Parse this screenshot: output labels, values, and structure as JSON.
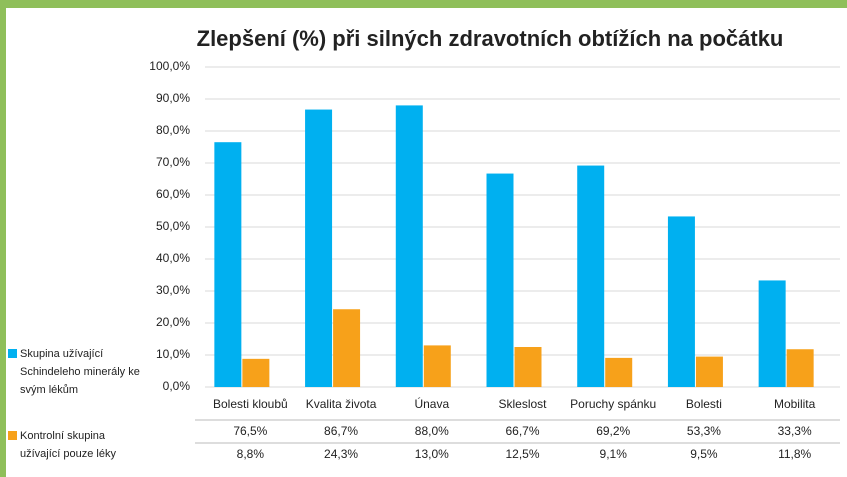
{
  "chart_data": {
    "type": "bar",
    "title": "Zlepšení (%) při silných zdravotních obtížích na počátku",
    "categories": [
      "Bolesti kloubů",
      "Kvalita života",
      "Únava",
      "Skleslost",
      "Poruchy spánku",
      "Bolesti",
      "Mobilita"
    ],
    "series": [
      {
        "name": "Skupina užívající Schindeleho minerály ke svým lékům",
        "color": "#00b0f0",
        "values": [
          76.5,
          86.7,
          88.0,
          66.7,
          69.2,
          53.3,
          33.3
        ],
        "value_labels": [
          "76,5%",
          "86,7%",
          "88,0%",
          "66,7%",
          "69,2%",
          "53,3%",
          "33,3%"
        ]
      },
      {
        "name": "Kontrolní skupina užívající pouze léky",
        "color": "#f7a11a",
        "values": [
          8.8,
          24.3,
          13.0,
          12.5,
          9.1,
          9.5,
          11.8
        ],
        "value_labels": [
          "8,8%",
          "24,3%",
          "13,0%",
          "12,5%",
          "9,1%",
          "9,5%",
          "11,8%"
        ]
      }
    ],
    "ylim": [
      0,
      100
    ],
    "yticks": [
      {
        "value": 0,
        "label": "0,0%"
      },
      {
        "value": 10,
        "label": "10,0%"
      },
      {
        "value": 20,
        "label": "20,0%"
      },
      {
        "value": 30,
        "label": "30,0%"
      },
      {
        "value": 40,
        "label": "40,0%"
      },
      {
        "value": 50,
        "label": "50,0%"
      },
      {
        "value": 60,
        "label": "60,0%"
      },
      {
        "value": 70,
        "label": "70,0%"
      },
      {
        "value": 80,
        "label": "80,0%"
      },
      {
        "value": 90,
        "label": "90,0%"
      },
      {
        "value": 100,
        "label": "100,0%"
      }
    ],
    "grid": true
  }
}
